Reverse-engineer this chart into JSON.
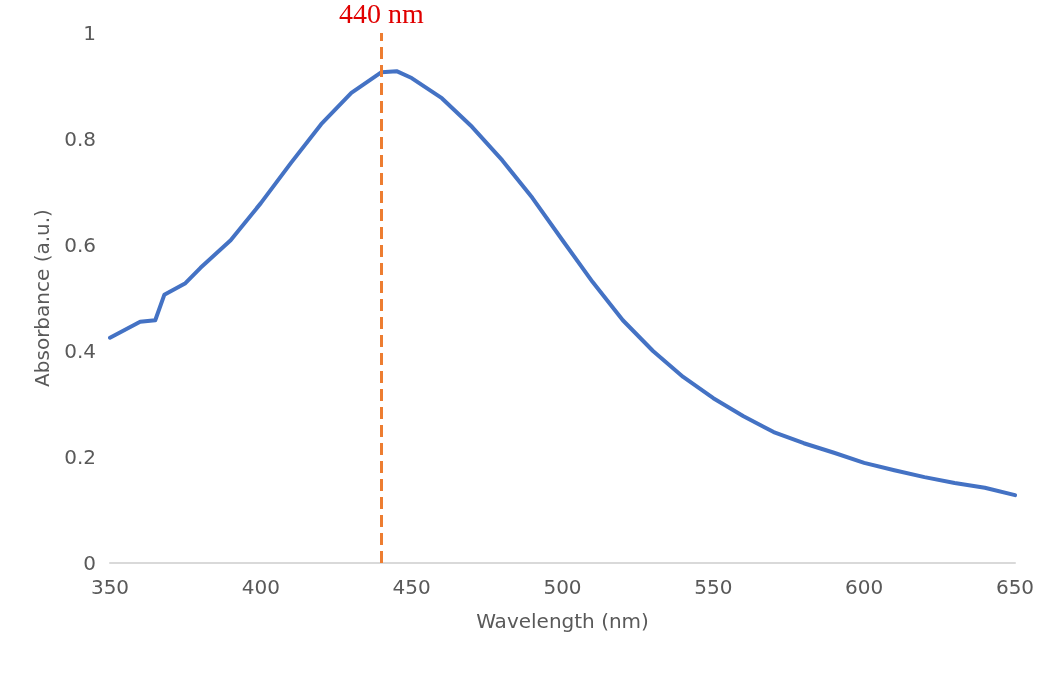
{
  "chart_data": {
    "type": "line",
    "xlabel": "Wavelength (nm)",
    "ylabel": "Absorbance (a.u.)",
    "series": [
      {
        "color": "#4472c4",
        "x": [
          350,
          360,
          365,
          368,
          375,
          380,
          390,
          400,
          410,
          420,
          430,
          440,
          445,
          450,
          460,
          470,
          480,
          490,
          500,
          510,
          520,
          530,
          540,
          550,
          560,
          570,
          580,
          590,
          600,
          610,
          620,
          630,
          640,
          650
        ],
        "values": [
          0.425,
          0.455,
          0.458,
          0.506,
          0.528,
          0.557,
          0.609,
          0.679,
          0.755,
          0.828,
          0.887,
          0.926,
          0.928,
          0.915,
          0.877,
          0.823,
          0.76,
          0.689,
          0.609,
          0.53,
          0.458,
          0.4,
          0.351,
          0.311,
          0.277,
          0.247,
          0.226,
          0.208,
          0.189,
          0.175,
          0.162,
          0.151,
          0.142,
          0.128
        ]
      }
    ],
    "xlim": [
      350,
      650
    ],
    "xticks": [
      350,
      400,
      450,
      500,
      550,
      600,
      650
    ],
    "ylim": [
      0,
      1
    ],
    "yticks": [
      0,
      0.2,
      0.4,
      0.6,
      0.8,
      1
    ],
    "ref_lines": [
      {
        "axis": "x",
        "value": 440,
        "label": "440 nm",
        "color": "#ed7d31",
        "line_style": "dashed"
      }
    ],
    "grid": false,
    "marker": "none",
    "line_style": "solid"
  }
}
